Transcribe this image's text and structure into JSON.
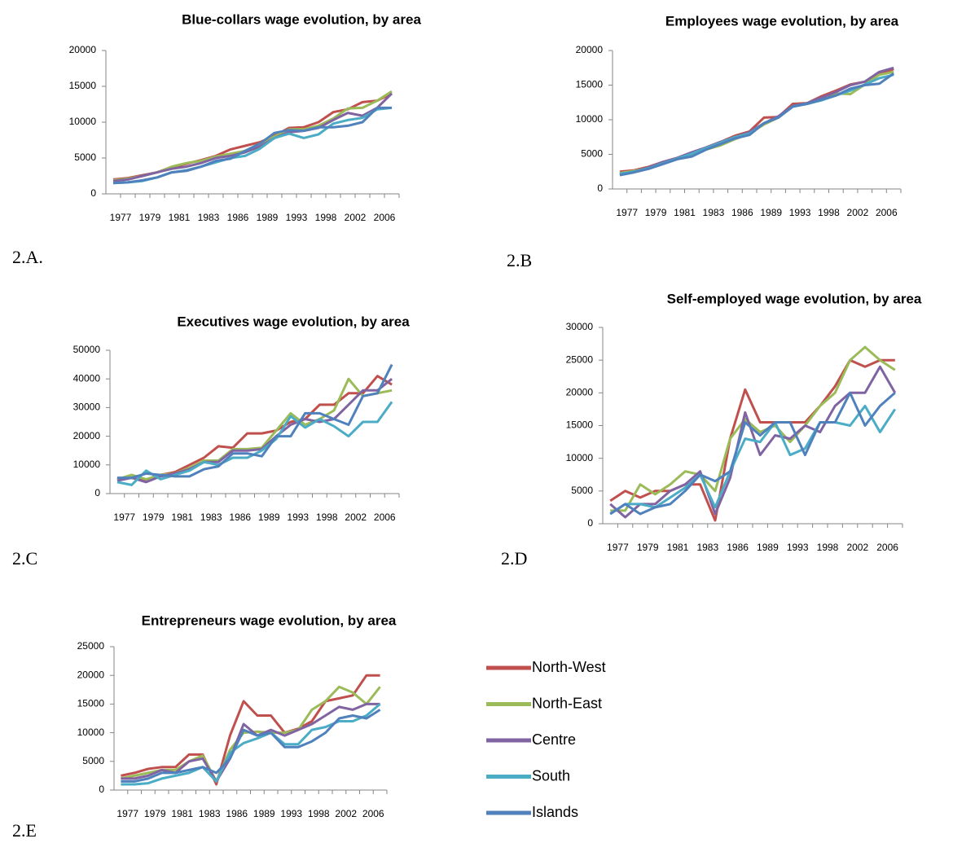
{
  "chart_data": [
    {
      "type": "line",
      "title": "Blue-collars wage evolution, by area",
      "categories": [
        "1977",
        null,
        "1979",
        null,
        "1981",
        null,
        "1983",
        null,
        "1986",
        null,
        "1989",
        null,
        "1993",
        null,
        "1998",
        null,
        "2002",
        null,
        "2006",
        null
      ],
      "ylim": [
        0,
        20000
      ],
      "yticks": [
        0,
        5000,
        10000,
        15000,
        20000
      ],
      "series": [
        {
          "values": [
            2000,
            2200,
            2600,
            3000,
            3700,
            4200,
            4700,
            5300,
            6200,
            6700,
            7200,
            8100,
            9200,
            9300,
            10000,
            11400,
            11800,
            12800,
            13000,
            14000
          ]
        },
        {
          "values": [
            1900,
            2100,
            2500,
            3000,
            3800,
            4300,
            4600,
            5200,
            5600,
            6000,
            7000,
            8000,
            9000,
            9000,
            9500,
            10500,
            11900,
            12000,
            13000,
            14300
          ]
        },
        {
          "values": [
            1800,
            2000,
            2500,
            3000,
            3500,
            3800,
            4300,
            5000,
            5300,
            5800,
            6600,
            7800,
            8600,
            8800,
            9200,
            10300,
            11300,
            10900,
            12000,
            14000
          ]
        },
        {
          "values": [
            1500,
            1600,
            1800,
            2300,
            3000,
            3300,
            3800,
            4400,
            5000,
            5300,
            6300,
            7800,
            8400,
            7800,
            8300,
            9800,
            10300,
            10600,
            11800,
            12000
          ]
        },
        {
          "values": [
            1500,
            1600,
            1900,
            2300,
            3000,
            3200,
            3800,
            4600,
            4900,
            6000,
            7000,
            8500,
            8900,
            8800,
            9300,
            9300,
            9500,
            10000,
            12000,
            12000
          ]
        }
      ]
    },
    {
      "type": "line",
      "title": "Employees wage evolution, by area",
      "categories": [
        "1977",
        null,
        "1979",
        null,
        "1981",
        null,
        "1983",
        null,
        "1986",
        null,
        "1989",
        null,
        "1993",
        null,
        "1998",
        null,
        "2002",
        null,
        "2006",
        null
      ],
      "ylim": [
        0,
        20000
      ],
      "yticks": [
        0,
        5000,
        10000,
        15000,
        20000
      ],
      "series": [
        {
          "values": [
            2500,
            2700,
            3200,
            3900,
            4500,
            5200,
            6000,
            6800,
            7700,
            8300,
            10300,
            10400,
            12300,
            12400,
            13400,
            14200,
            15100,
            15500,
            16700,
            17300
          ]
        },
        {
          "values": [
            2300,
            2600,
            3000,
            3700,
            4300,
            5000,
            5700,
            6300,
            7200,
            8000,
            9300,
            10300,
            12000,
            12400,
            13000,
            13800,
            13700,
            15100,
            16500,
            16900
          ]
        },
        {
          "values": [
            2100,
            2500,
            3100,
            3900,
            4500,
            5300,
            6000,
            6800,
            7500,
            8200,
            9500,
            10500,
            12000,
            12400,
            13200,
            14000,
            15000,
            15500,
            16900,
            17500
          ]
        },
        {
          "values": [
            2200,
            2500,
            3000,
            3700,
            4400,
            5100,
            5900,
            6700,
            7500,
            8000,
            9500,
            10300,
            11900,
            12300,
            12800,
            13500,
            14200,
            15100,
            16000,
            16500
          ]
        },
        {
          "values": [
            2000,
            2400,
            2900,
            3600,
            4300,
            4700,
            5700,
            6500,
            7300,
            7800,
            9500,
            10300,
            11900,
            12300,
            12900,
            13500,
            14500,
            15000,
            15200,
            16700
          ]
        }
      ]
    },
    {
      "type": "line",
      "title": "Executives wage evolution, by area",
      "categories": [
        "1977",
        null,
        "1979",
        null,
        "1981",
        null,
        "1983",
        null,
        "1986",
        null,
        "1989",
        null,
        "1993",
        null,
        "1998",
        null,
        "2002",
        null,
        "2006",
        null
      ],
      "ylim": [
        0,
        50000
      ],
      "yticks": [
        0,
        10000,
        20000,
        30000,
        40000,
        50000
      ],
      "series": [
        {
          "values": [
            5000,
            5500,
            4500,
            6500,
            7500,
            10000,
            12500,
            16500,
            16000,
            21000,
            21000,
            22000,
            25000,
            26000,
            31000,
            31000,
            35000,
            35000,
            41000,
            38000
          ]
        },
        {
          "values": [
            5000,
            6500,
            5000,
            6500,
            7000,
            9000,
            11500,
            11500,
            15500,
            15500,
            16000,
            22000,
            28000,
            24000,
            26000,
            29000,
            40000,
            34000,
            35000,
            36000
          ]
        },
        {
          "values": [
            4500,
            5500,
            4000,
            6000,
            7000,
            8500,
            11000,
            11000,
            15000,
            15000,
            15500,
            20000,
            24000,
            26000,
            25000,
            26000,
            31000,
            36000,
            36000,
            40000
          ]
        },
        {
          "values": [
            4000,
            3000,
            8000,
            5000,
            6500,
            8000,
            11000,
            10000,
            12500,
            12500,
            15000,
            19000,
            27000,
            23000,
            26000,
            23500,
            20000,
            25000,
            25000,
            32000
          ]
        },
        {
          "values": [
            5500,
            5500,
            7000,
            6500,
            6000,
            6000,
            8500,
            9500,
            14000,
            14000,
            13000,
            20000,
            20000,
            28000,
            28000,
            26000,
            24000,
            34000,
            35000,
            45000
          ]
        }
      ]
    },
    {
      "type": "line",
      "title": "Self-employed wage evolution, by area",
      "categories": [
        "1977",
        null,
        "1979",
        null,
        "1981",
        null,
        "1983",
        null,
        "1986",
        null,
        "1989",
        null,
        "1993",
        null,
        "1998",
        null,
        "2002",
        null,
        "2006",
        null
      ],
      "ylim": [
        0,
        30000
      ],
      "yticks": [
        0,
        5000,
        10000,
        15000,
        20000,
        25000,
        30000
      ],
      "series": [
        {
          "values": [
            3500,
            5000,
            4000,
            5000,
            5000,
            6000,
            6000,
            500,
            13000,
            20500,
            15500,
            15500,
            15500,
            15500,
            18000,
            21000,
            25000,
            24000,
            25000,
            25000
          ]
        },
        {
          "values": [
            2000,
            2000,
            6000,
            4500,
            6000,
            8000,
            7500,
            5000,
            13000,
            16000,
            14000,
            15000,
            12500,
            15000,
            18000,
            20000,
            25000,
            27000,
            25000,
            23500
          ]
        },
        {
          "values": [
            3000,
            1000,
            3000,
            3000,
            5000,
            6000,
            8000,
            1500,
            7000,
            17000,
            10500,
            13500,
            13000,
            15000,
            14000,
            18000,
            20000,
            20000,
            24000,
            20000
          ]
        },
        {
          "values": [
            1500,
            3000,
            3000,
            2500,
            4000,
            5500,
            7500,
            2500,
            8000,
            13000,
            12500,
            15500,
            10500,
            11500,
            15500,
            15500,
            15000,
            18000,
            14000,
            17500
          ]
        },
        {
          "values": [
            1500,
            3000,
            1500,
            2500,
            3000,
            5000,
            7500,
            6500,
            8000,
            15500,
            13500,
            15500,
            15500,
            10500,
            15500,
            15500,
            20000,
            15000,
            18000,
            20000
          ]
        }
      ]
    },
    {
      "type": "line",
      "title": "Entrepreneurs wage evolution, by area",
      "categories": [
        "1977",
        null,
        "1979",
        null,
        "1981",
        null,
        "1983",
        null,
        "1986",
        null,
        "1989",
        null,
        "1993",
        null,
        "1998",
        null,
        "2002",
        null,
        "2006",
        null
      ],
      "ylim": [
        0,
        25000
      ],
      "yticks": [
        0,
        5000,
        10000,
        15000,
        20000,
        25000
      ],
      "series": [
        {
          "values": [
            2500,
            3000,
            3700,
            4000,
            4000,
            6200,
            6200,
            1000,
            9500,
            15500,
            13000,
            13000,
            10000,
            10700,
            12000,
            15500,
            16000,
            16500,
            20000,
            20000
          ]
        },
        {
          "values": [
            2000,
            2500,
            3000,
            3500,
            3500,
            5000,
            6000,
            1500,
            7000,
            10000,
            10200,
            10000,
            10000,
            10500,
            14000,
            15500,
            18000,
            17000,
            15000,
            18000
          ]
        },
        {
          "values": [
            2000,
            2000,
            2500,
            3500,
            3000,
            5000,
            5500,
            1500,
            5500,
            11500,
            9500,
            10500,
            9500,
            10500,
            11500,
            13000,
            14500,
            14000,
            15000,
            15000
          ]
        },
        {
          "values": [
            1000,
            1000,
            1200,
            2000,
            2500,
            3000,
            4000,
            1500,
            6500,
            8200,
            9000,
            10000,
            8000,
            8000,
            10500,
            11000,
            12000,
            12000,
            13000,
            15000
          ]
        },
        {
          "values": [
            1500,
            1500,
            2000,
            3000,
            3000,
            3500,
            4000,
            3000,
            5500,
            10500,
            9500,
            10000,
            7500,
            7500,
            8500,
            10000,
            12500,
            13000,
            12500,
            14000
          ]
        }
      ]
    }
  ],
  "legend": [
    {
      "name": "North-West",
      "color": "#c0504d"
    },
    {
      "name": "North-East",
      "color": "#9bbb59"
    },
    {
      "name": "Centre",
      "color": "#8064a2"
    },
    {
      "name": "South",
      "color": "#4bacc6"
    },
    {
      "name": "Islands",
      "color": "#4f81bd"
    }
  ],
  "panel_labels": [
    "2.A.",
    "2.B",
    "2.C",
    "2.D",
    "2.E"
  ]
}
